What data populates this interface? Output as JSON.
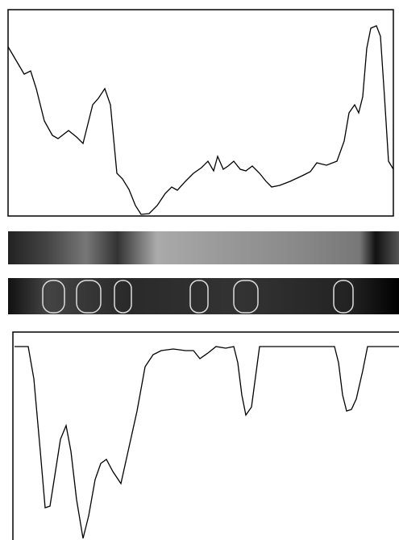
{
  "chart_data": [
    {
      "type": "line",
      "color": "#000000",
      "x": [
        0,
        10,
        20,
        28,
        35,
        45,
        55,
        62,
        75,
        85,
        93,
        100,
        105,
        112,
        120,
        127,
        135,
        142,
        150,
        158,
        165,
        175,
        185,
        195,
        203,
        210,
        220,
        230,
        240,
        248,
        255,
        260,
        267,
        273,
        280,
        288,
        295,
        303,
        312,
        320,
        327,
        337,
        350,
        365,
        375,
        383,
        395,
        408,
        417,
        423,
        430,
        435,
        440,
        445,
        450,
        457,
        462,
        467,
        472,
        478
      ],
      "values": [
        210,
        193,
        176,
        180,
        158,
        118,
        100,
        96,
        106,
        98,
        90,
        118,
        138,
        146,
        158,
        138,
        53,
        46,
        33,
        13,
        2,
        3,
        13,
        28,
        36,
        32,
        43,
        53,
        60,
        68,
        56,
        74,
        58,
        62,
        68,
        58,
        56,
        62,
        53,
        43,
        36,
        38,
        43,
        50,
        55,
        66,
        63,
        68,
        93,
        128,
        138,
        128,
        148,
        208,
        233,
        236,
        223,
        148,
        68,
        58
      ],
      "xlim": [
        0,
        478
      ],
      "ylim": [
        0,
        256
      ]
    },
    {
      "type": "line",
      "color": "#000000",
      "x": [
        0,
        17,
        24,
        32,
        38,
        44,
        50,
        57,
        64,
        70,
        77,
        85,
        92,
        100,
        107,
        114,
        122,
        132,
        142,
        152,
        162,
        172,
        182,
        197,
        212,
        222,
        230,
        240,
        250,
        262,
        272,
        277,
        282,
        287,
        294,
        300,
        304,
        397,
        402,
        407,
        412,
        418,
        424,
        432,
        438,
        477
      ],
      "values": [
        240,
        240,
        200,
        110,
        40,
        42,
        80,
        125,
        142,
        110,
        50,
        2,
        30,
        75,
        95,
        100,
        85,
        70,
        115,
        160,
        215,
        230,
        235,
        237,
        235,
        235,
        225,
        232,
        240,
        238,
        240,
        220,
        180,
        155,
        165,
        210,
        240,
        240,
        220,
        180,
        160,
        162,
        175,
        210,
        240,
        240
      ],
      "xlim": [
        0,
        477
      ],
      "ylim": [
        0,
        258
      ]
    }
  ]
}
